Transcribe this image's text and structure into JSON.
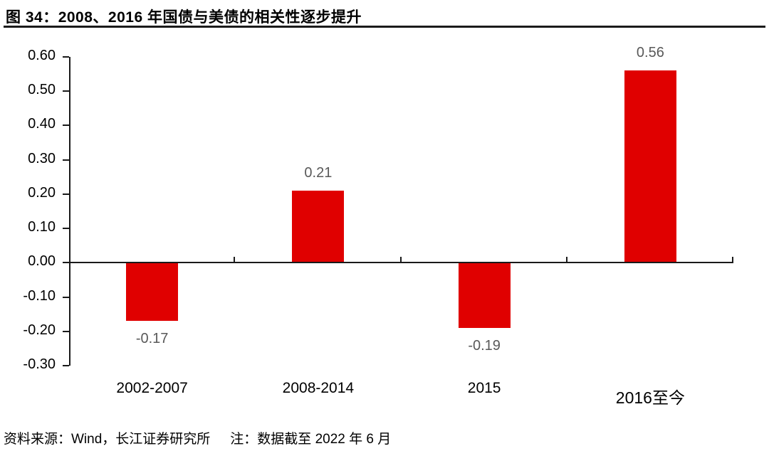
{
  "title": "图 34：2008、2016 年国债与美债的相关性逐步提升",
  "footer": {
    "source": "资料来源：Wind，长江证券研究所",
    "note": "注：数据截至 2022 年 6 月"
  },
  "colors": {
    "bar": "#e00000",
    "value_label": "#595959",
    "axis": "#1a1a1a",
    "text": "#000000"
  },
  "chart_data": {
    "type": "bar",
    "title": "图 34：2008、2016 年国债与美债的相关性逐步提升",
    "categories": [
      "2002-2007",
      "2008-2014",
      "2015",
      "2016至今"
    ],
    "values": [
      -0.17,
      0.21,
      -0.19,
      0.56
    ],
    "value_labels": [
      "-0.17",
      "0.21",
      "-0.19",
      "0.56"
    ],
    "y_ticks": [
      "0.60",
      "0.50",
      "0.40",
      "0.30",
      "0.20",
      "0.10",
      "0.00",
      "-0.10",
      "-0.20",
      "-0.30"
    ],
    "ylim": [
      -0.3,
      0.6
    ],
    "xlabel": "",
    "ylabel": "",
    "grid": false,
    "legend": false,
    "bar_color": "#e00000",
    "annotations": []
  }
}
